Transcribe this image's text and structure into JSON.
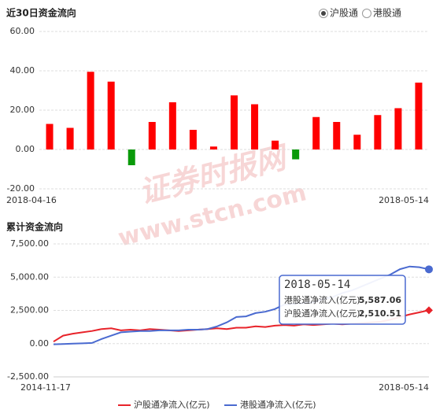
{
  "chart_data": [
    {
      "type": "bar",
      "title": "近30日资金流向",
      "options": [
        "沪股通",
        "港股通"
      ],
      "selected_option": 0,
      "categories": [
        "2018-04-16",
        null,
        null,
        null,
        null,
        null,
        null,
        null,
        null,
        null,
        null,
        null,
        null,
        null,
        null,
        null,
        null,
        null,
        "2018-05-14"
      ],
      "values": [
        13,
        11,
        39.5,
        34.5,
        -8,
        14,
        24,
        10,
        1.5,
        27.5,
        23,
        4.5,
        -5,
        16.5,
        14,
        7.5,
        17.5,
        21,
        34
      ],
      "color": "#ff0000",
      "negative_color": "#0a9a0a",
      "ylim": [
        -20,
        60
      ],
      "yticks": [
        {
          "value": -20,
          "label": "-20.00"
        },
        {
          "value": 0,
          "label": "0.00"
        },
        {
          "value": 20,
          "label": "20.00"
        },
        {
          "value": 40,
          "label": "40.00"
        },
        {
          "value": 60,
          "label": "60.00"
        }
      ],
      "grid": true
    },
    {
      "type": "line",
      "title": "累计资金流向",
      "categories": [
        "2014-11-17",
        null,
        null,
        null,
        null,
        null,
        null,
        null,
        null,
        null,
        null,
        null,
        null,
        null,
        null,
        null,
        null,
        null,
        null,
        null,
        null,
        null,
        null,
        null,
        null,
        null,
        null,
        null,
        null,
        null,
        null,
        null,
        null,
        null,
        null,
        null,
        null,
        null,
        null,
        "2018-05-14"
      ],
      "series": [
        {
          "name": "沪股通净流入(亿元)",
          "color": "#e8232a",
          "marker": "diamond",
          "values": [
            150,
            600,
            750,
            850,
            950,
            1100,
            1150,
            1000,
            1050,
            1000,
            1100,
            1050,
            1000,
            950,
            1000,
            1050,
            1100,
            1150,
            1100,
            1200,
            1200,
            1300,
            1250,
            1350,
            1400,
            1350,
            1450,
            1400,
            1450,
            1500,
            1450,
            1500,
            1550,
            1600,
            1650,
            1800,
            2000,
            2200,
            2350,
            2510.51
          ]
        },
        {
          "name": "港股通净流入(亿元)",
          "color": "#4a6ad0",
          "marker": "circle",
          "values": [
            -50,
            -30,
            0,
            20,
            50,
            350,
            600,
            850,
            900,
            950,
            950,
            1000,
            1000,
            1000,
            1050,
            1050,
            1100,
            1300,
            1600,
            2000,
            2050,
            2300,
            2400,
            2600,
            2950,
            3000,
            3050,
            3100,
            3350,
            3500,
            3800,
            4000,
            4300,
            4600,
            4900,
            5200,
            5600,
            5800,
            5750,
            5587.06
          ]
        }
      ],
      "ylim": [
        -2500,
        7500
      ],
      "yticks": [
        {
          "value": -2500,
          "label": "-2,500.00"
        },
        {
          "value": 0,
          "label": "0.00"
        },
        {
          "value": 2500,
          "label": "2,500.00"
        },
        {
          "value": 5000,
          "label": "5,000.00"
        },
        {
          "value": 7500,
          "label": "7,500.00"
        }
      ],
      "grid": true,
      "tooltip": {
        "title": "2018-05-14",
        "entries": [
          {
            "text": "港股通净流入(亿元):",
            "value": 5587.06,
            "label": "5,587.06"
          },
          {
            "text": "沪股通净流入(亿元):",
            "value": 2510.51,
            "label": "2,510.51"
          }
        ]
      }
    }
  ],
  "watermark": [
    "证券时报网",
    "www.stcn.com"
  ]
}
